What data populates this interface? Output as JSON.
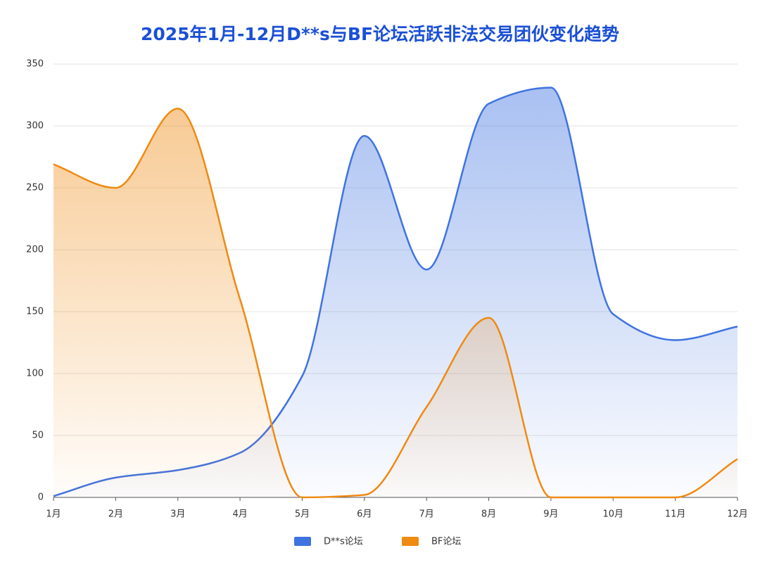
{
  "chart_data": {
    "type": "line",
    "title": "2025年1月-12月D**s与BF论坛活跃非法交易团伙变化趋势",
    "categories": [
      "1月",
      "2月",
      "3月",
      "4月",
      "5月",
      "6月",
      "7月",
      "8月",
      "9月",
      "10月",
      "11月",
      "12月"
    ],
    "series": [
      {
        "name": "D**s论坛",
        "color": "#3f73e0",
        "values": [
          1,
          16,
          22,
          36,
          98,
          292,
          184,
          318,
          331,
          148,
          127,
          138
        ]
      },
      {
        "name": "BF论坛",
        "color": "#ef8a12",
        "values": [
          269,
          250,
          314,
          160,
          0,
          2,
          73,
          145,
          0,
          0,
          0,
          31
        ]
      }
    ],
    "ylim": [
      0,
      350
    ],
    "yticks": [
      0,
      50,
      100,
      150,
      200,
      250,
      300,
      350
    ],
    "grid": true,
    "legend": "bottom"
  }
}
